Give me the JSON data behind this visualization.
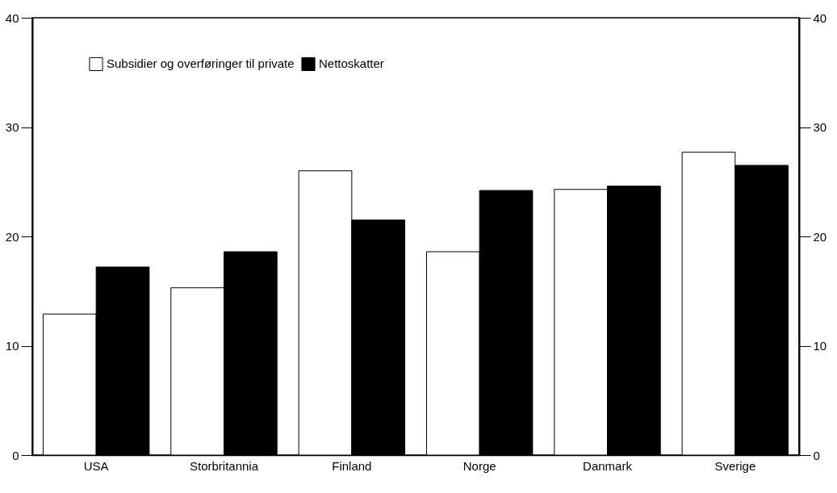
{
  "chart_data": {
    "type": "bar",
    "categories": [
      "USA",
      "Storbritannia",
      "Finland",
      "Norge",
      "Danmark",
      "Sverige"
    ],
    "series": [
      {
        "name": "Subsidier og overføringer til private",
        "color": "#ffffff",
        "values": [
          12.9,
          15.3,
          26.0,
          18.6,
          24.3,
          27.7
        ]
      },
      {
        "name": "Nettoskatter",
        "color": "#000000",
        "values": [
          17.2,
          18.6,
          21.5,
          24.2,
          24.6,
          26.5
        ]
      }
    ],
    "ylim": [
      0,
      40
    ],
    "yticks": [
      0,
      10,
      20,
      30,
      40
    ],
    "y2lim": [
      0,
      40
    ],
    "y2ticks": [
      0,
      10,
      20,
      30,
      40
    ],
    "grid": false,
    "legend": "top left"
  }
}
